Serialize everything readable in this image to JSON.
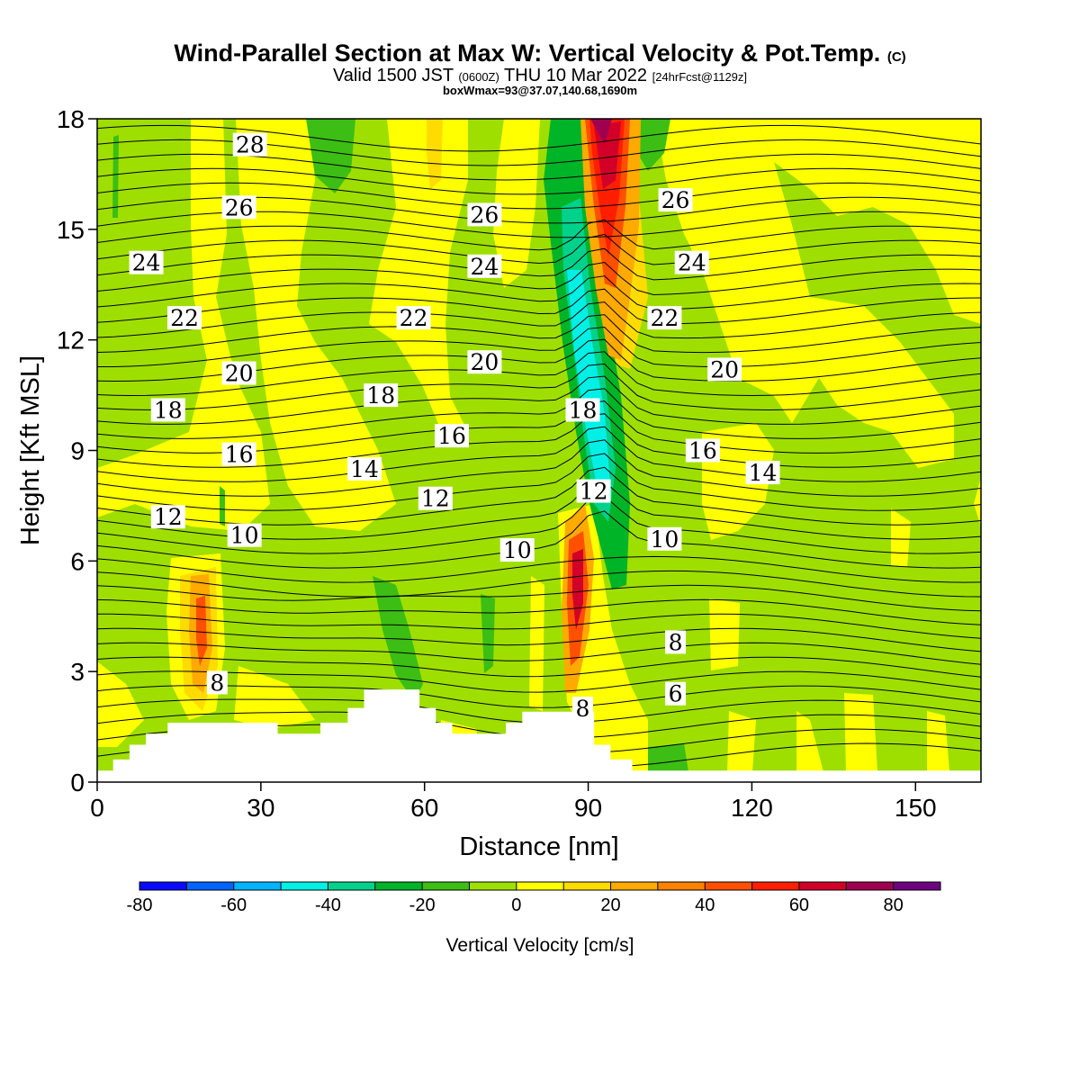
{
  "title": {
    "main": "Wind-Parallel Section at Max W: Vertical Velocity & Pot.Temp.",
    "main_mark": "(C)",
    "valid_prefix": "Valid 1500 JST",
    "valid_zulu": "(0600Z)",
    "valid_date": "THU 10 Mar 2022",
    "forecast": "[24hrFcst@1129z]",
    "box_wmax": "boxWmax=93@37.07,140.68,1690m"
  },
  "colors": {
    "background_zero": "#9edf00",
    "frame": "#000000"
  },
  "chart_data": {
    "type": "heatmap",
    "xlabel": "Distance [nm]",
    "ylabel": "Height [Kft MSL]",
    "xlim": [
      0,
      162
    ],
    "ylim": [
      0,
      18
    ],
    "x_ticks": [
      0,
      30,
      60,
      90,
      120,
      150
    ],
    "y_ticks": [
      0,
      3,
      6,
      9,
      12,
      15,
      18
    ],
    "field": "Vertical Velocity [cm/s]",
    "colorbar": {
      "label": "Vertical Velocity [cm/s]",
      "range": [
        -80,
        90
      ],
      "step": 10,
      "tick_labels": [
        -80,
        -60,
        -40,
        -20,
        0,
        20,
        40,
        60,
        80
      ],
      "colors": [
        "#0a0aff",
        "#0064ff",
        "#00b4ff",
        "#00f0e6",
        "#00d28c",
        "#00b428",
        "#3cbe14",
        "#9ee100",
        "#ffff00",
        "#ffdc00",
        "#ffaa00",
        "#ff8200",
        "#ff5000",
        "#ff1e00",
        "#d20028",
        "#a00050",
        "#6e0082"
      ]
    },
    "terrain_height_kft": [
      [
        0,
        0.3
      ],
      [
        3,
        0.6
      ],
      [
        6,
        1.0
      ],
      [
        9,
        1.3
      ],
      [
        13,
        1.6
      ],
      [
        20,
        1.6
      ],
      [
        33,
        1.3
      ],
      [
        41,
        1.6
      ],
      [
        46,
        2.0
      ],
      [
        49,
        2.5
      ],
      [
        59,
        2.0
      ],
      [
        62,
        1.6
      ],
      [
        65,
        1.3
      ],
      [
        71,
        1.3
      ],
      [
        75,
        1.6
      ],
      [
        78,
        1.9
      ],
      [
        87,
        1.9
      ],
      [
        91,
        1.0
      ],
      [
        94,
        0.6
      ],
      [
        98,
        0.3
      ],
      [
        162,
        0.3
      ]
    ],
    "vertical_velocity_features": [
      {
        "kind": "updraft",
        "x": 94,
        "y_range": [
          11,
          18
        ],
        "peak_cm_s": 93
      },
      {
        "kind": "downdraft",
        "x": 90,
        "y_range": [
          7.5,
          16
        ],
        "peak_cm_s": -45
      },
      {
        "kind": "updraft",
        "x": 88,
        "y_range": [
          2.7,
          7.5
        ],
        "peak_cm_s": 65
      },
      {
        "kind": "updraft",
        "x": 20,
        "y_range": [
          2.2,
          5.6
        ],
        "peak_cm_s": 35
      }
    ],
    "theta_contours": {
      "units": "C",
      "levels": [
        6,
        8,
        10,
        12,
        14,
        16,
        18,
        20,
        22,
        24,
        26,
        28
      ],
      "labels": [
        {
          "value": 28,
          "x": 28,
          "y": 17.3
        },
        {
          "value": 26,
          "x": 26,
          "y": 15.6
        },
        {
          "value": 26,
          "x": 71,
          "y": 15.4
        },
        {
          "value": 26,
          "x": 106,
          "y": 15.8
        },
        {
          "value": 24,
          "x": 9,
          "y": 14.1
        },
        {
          "value": 24,
          "x": 71,
          "y": 14.0
        },
        {
          "value": 24,
          "x": 109,
          "y": 14.1
        },
        {
          "value": 22,
          "x": 16,
          "y": 12.6
        },
        {
          "value": 22,
          "x": 58,
          "y": 12.6
        },
        {
          "value": 22,
          "x": 104,
          "y": 12.6
        },
        {
          "value": 20,
          "x": 26,
          "y": 11.1
        },
        {
          "value": 20,
          "x": 71,
          "y": 11.4
        },
        {
          "value": 20,
          "x": 115,
          "y": 11.2
        },
        {
          "value": 18,
          "x": 13,
          "y": 10.1
        },
        {
          "value": 18,
          "x": 52,
          "y": 10.5
        },
        {
          "value": 18,
          "x": 89,
          "y": 10.1
        },
        {
          "value": 16,
          "x": 26,
          "y": 8.9
        },
        {
          "value": 16,
          "x": 65,
          "y": 9.4
        },
        {
          "value": 16,
          "x": 111,
          "y": 9.0
        },
        {
          "value": 14,
          "x": 49,
          "y": 8.5
        },
        {
          "value": 14,
          "x": 122,
          "y": 8.4
        },
        {
          "value": 12,
          "x": 13,
          "y": 7.2
        },
        {
          "value": 12,
          "x": 62,
          "y": 7.7
        },
        {
          "value": 12,
          "x": 91,
          "y": 7.9
        },
        {
          "value": 10,
          "x": 27,
          "y": 6.7
        },
        {
          "value": 10,
          "x": 77,
          "y": 6.3
        },
        {
          "value": 10,
          "x": 104,
          "y": 6.6
        },
        {
          "value": 8,
          "x": 22,
          "y": 2.7
        },
        {
          "value": 8,
          "x": 106,
          "y": 3.8
        },
        {
          "value": 8,
          "x": 89,
          "y": 2.0
        },
        {
          "value": 6,
          "x": 106,
          "y": 2.4
        }
      ]
    }
  }
}
